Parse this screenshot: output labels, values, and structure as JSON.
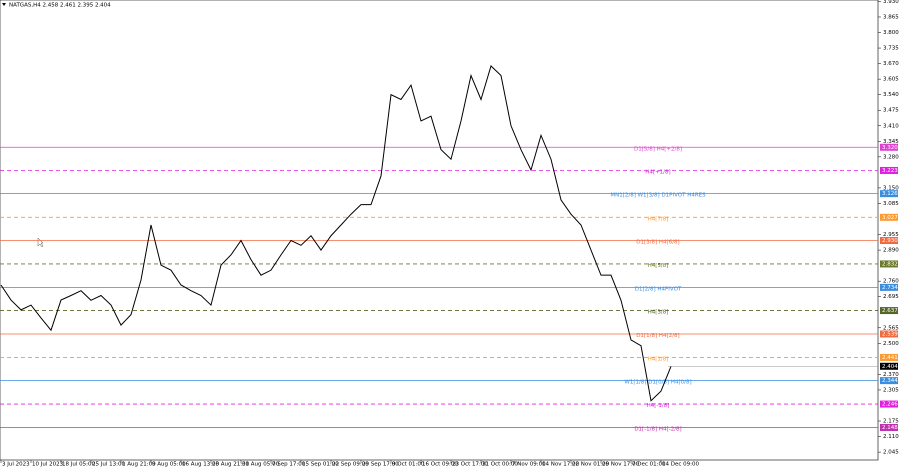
{
  "chart_data": {
    "type": "line",
    "title": "NATGAS,H4  2.458 2.461 2.395 2.404",
    "categories": [
      "3 Jul 2023",
      null,
      null,
      "10 Jul 2023",
      null,
      null,
      "18 Jul 05:00",
      null,
      null,
      "25 Jul 13:00",
      null,
      null,
      "1 Aug 21:00",
      null,
      null,
      "9 Aug 05:00",
      null,
      null,
      "16 Aug 13:00",
      null,
      null,
      "23 Aug 21:00",
      null,
      null,
      "31 Aug 05:00",
      null,
      null,
      "7 Sep 17:00",
      null,
      null,
      "15 Sep 01:00",
      null,
      null,
      "22 Sep 09:00",
      null,
      null,
      "29 Sep 17:00",
      null,
      null,
      "9 Oct 01:00",
      null,
      null,
      "16 Oct 09:00",
      null,
      null,
      "23 Oct 17:00",
      null,
      null,
      "31 Oct 00:00",
      null,
      null,
      "7 Nov 09:00",
      null,
      null,
      "14 Nov 17:00",
      null,
      null,
      "22 Nov 01:00",
      null,
      null,
      "29 Nov 17:00",
      null,
      null,
      "7 Dec 01:00",
      null,
      null,
      "14 Dec 09:00",
      null
    ],
    "series": [
      {
        "name": "NATGAS,H4",
        "color": "#000000",
        "values": [
          2.744,
          2.681,
          2.64,
          2.66,
          2.606,
          2.555,
          2.681,
          2.7,
          2.72,
          2.68,
          2.7,
          2.66,
          2.576,
          2.62,
          2.765,
          2.995,
          2.827,
          2.806,
          2.744,
          2.72,
          2.7,
          2.66,
          2.827,
          2.87,
          2.93,
          2.85,
          2.785,
          2.806,
          2.87,
          2.93,
          2.91,
          2.95,
          2.89,
          2.95,
          2.995,
          3.04,
          3.08,
          3.08,
          3.2,
          3.54,
          3.52,
          3.58,
          3.43,
          3.45,
          3.31,
          3.27,
          3.43,
          3.62,
          3.52,
          3.66,
          3.62,
          3.41,
          3.31,
          3.225,
          3.37,
          3.27,
          3.1,
          3.04,
          2.995,
          2.89,
          2.785,
          2.785,
          2.68,
          2.514,
          2.49,
          2.26,
          2.3,
          2.404
        ]
      }
    ],
    "ylim": [
      2.012,
      3.936
    ],
    "yticks": [
      {
        "value": 3.93,
        "label": "3.930"
      },
      {
        "value": 3.865,
        "label": "3.865"
      },
      {
        "value": 3.8,
        "label": "3.800"
      },
      {
        "value": 3.735,
        "label": "3.735"
      },
      {
        "value": 3.67,
        "label": "3.670"
      },
      {
        "value": 3.605,
        "label": "3.605"
      },
      {
        "value": 3.54,
        "label": "3.540"
      },
      {
        "value": 3.475,
        "label": "3.475"
      },
      {
        "value": 3.41,
        "label": "3.410"
      },
      {
        "value": 3.345,
        "label": "3.345"
      },
      {
        "value": 3.28,
        "label": "3.280"
      },
      {
        "value": 3.15,
        "label": "3.150"
      },
      {
        "value": 3.085,
        "label": "3.085"
      },
      {
        "value": 2.955,
        "label": "2.955"
      },
      {
        "value": 2.89,
        "label": "2.890"
      },
      {
        "value": 2.76,
        "label": "2.760"
      },
      {
        "value": 2.695,
        "label": "2.695"
      },
      {
        "value": 2.565,
        "label": "2.565"
      },
      {
        "value": 2.5,
        "label": "2.500"
      },
      {
        "value": 2.37,
        "label": "2.370"
      },
      {
        "value": 2.305,
        "label": "2.305"
      },
      {
        "value": 2.175,
        "label": "2.175"
      },
      {
        "value": 2.11,
        "label": "2.110"
      },
      {
        "value": 2.045,
        "label": "2.045"
      }
    ],
    "levels": [
      {
        "label": "D1[5/8] H4[+2/8]",
        "value": 3.32,
        "value_label": "3.320",
        "color": "#e040d0",
        "dashed": false
      },
      {
        "label": "H4[+1/8]",
        "value": 3.223,
        "value_label": "3.223",
        "color": "#e020e0",
        "dashed": true
      },
      {
        "label": "MN1[2/8] W1[3/8] D1PIVOT H4RES",
        "value": 3.126,
        "value_label": "3.126",
        "color": "#3a8ee0",
        "dashed": false
      },
      {
        "label": "H4[7/8]",
        "value": 3.027,
        "value_label": "3.027",
        "color": "#ff9a30",
        "dashed": true
      },
      {
        "label": "D1[3/8] H4[6/8]",
        "value": 2.93,
        "value_label": "2.930",
        "color": "#f06a40",
        "dashed": false
      },
      {
        "label": "H4[5/8]",
        "value": 2.832,
        "value_label": "2.832",
        "color": "#6b7a2a",
        "dashed": true
      },
      {
        "label": "D1[2/8] H4PIVOT",
        "value": 2.734,
        "value_label": "2.734",
        "color": "#3a8ee0",
        "dashed": false
      },
      {
        "label": "H4[3/8]",
        "value": 2.637,
        "value_label": "2.637",
        "color": "#55662a",
        "dashed": true
      },
      {
        "label": "D1[1/8] H4[2/8]",
        "value": 2.539,
        "value_label": "2.539",
        "color": "#f06a40",
        "dashed": false
      },
      {
        "label": "H4[1/8]",
        "value": 2.441,
        "value_label": "2.441",
        "color": "#ff9a30",
        "dashed": true
      },
      {
        "label": "W1[1/8] D1[0/8] H4[0/8]",
        "value": 2.344,
        "value_label": "2.344",
        "color": "#3a8ee0",
        "dashed": false
      },
      {
        "label": "H4[-1/8]",
        "value": 2.246,
        "value_label": "2.246",
        "color": "#e020e0",
        "dashed": true
      },
      {
        "label": "D1[-1/8] H4[-2/8]",
        "value": 2.148,
        "value_label": "2.148",
        "color": "#c030b0",
        "dashed": false
      }
    ],
    "current_price": {
      "value": 2.404,
      "label": "2.404"
    }
  }
}
